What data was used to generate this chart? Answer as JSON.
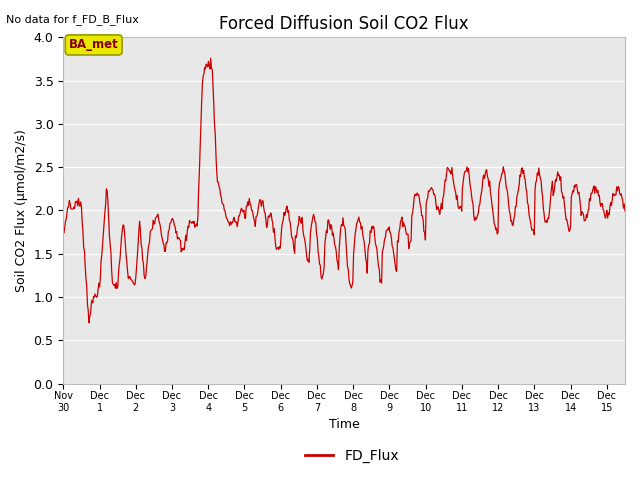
{
  "title": "Forced Diffusion Soil CO2 Flux",
  "no_data_label": "No data for f_FD_B_Flux",
  "ylabel": "Soil CO2 Flux (μmol/m2/s)",
  "xlabel": "Time",
  "legend_label": "FD_Flux",
  "legend_color": "#cc0000",
  "line_color": "#cc0000",
  "background_color": "#e8e8e8",
  "ylim": [
    0.0,
    4.0
  ],
  "yticks": [
    0.0,
    0.5,
    1.0,
    1.5,
    2.0,
    2.5,
    3.0,
    3.5,
    4.0
  ],
  "ba_met_box_facecolor": "#e8e800",
  "ba_met_box_edgecolor": "#999900",
  "ba_met_text": "BA_met",
  "ba_met_text_color": "#880000",
  "title_fontsize": 12,
  "label_fontsize": 9,
  "tick_fontsize": 8
}
